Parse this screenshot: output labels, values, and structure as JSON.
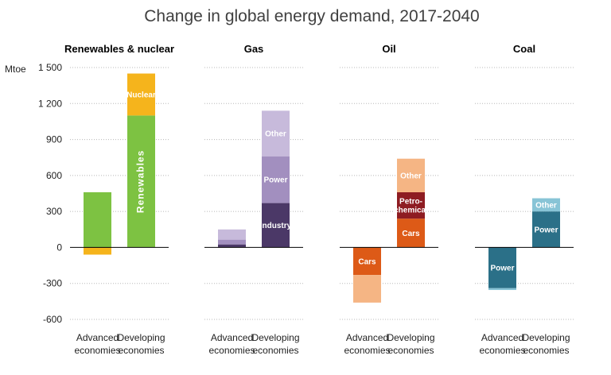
{
  "chart_data": {
    "type": "bar",
    "stacked": true,
    "title": "Change in global energy demand, 2017-2040",
    "ylabel": "Mtoe",
    "ylim": [
      -600,
      1500
    ],
    "yticks": [
      1500,
      1200,
      900,
      600,
      300,
      0,
      -300,
      -600
    ],
    "ytick_labels": [
      "1 500",
      "1 200",
      "900",
      "600",
      "300",
      "0",
      "-300",
      "-600"
    ],
    "grid": true,
    "categories": [
      "Advanced economies",
      "Developing economies"
    ],
    "category_lines": [
      [
        "Advanced",
        "economies"
      ],
      [
        "Developing",
        "economies"
      ]
    ],
    "panels": [
      {
        "title": "Renewables & nuclear",
        "bars": [
          {
            "category": "Advanced economies",
            "segments": [
              {
                "name": "Renewables",
                "value": 460,
                "color": "#7dc242",
                "label": ""
              },
              {
                "name": "Nuclear",
                "value": -60,
                "color": "#f5b41c",
                "label": ""
              }
            ]
          },
          {
            "category": "Developing economies",
            "segments": [
              {
                "name": "Renewables",
                "value": 1100,
                "color": "#7dc242",
                "label": "Renewables",
                "vertical": true
              },
              {
                "name": "Nuclear",
                "value": 350,
                "color": "#f5b41c",
                "label": "Nuclear"
              }
            ]
          }
        ]
      },
      {
        "title": "Gas",
        "bars": [
          {
            "category": "Advanced economies",
            "segments": [
              {
                "name": "Industry",
                "value": 25,
                "color": "#4b3867",
                "label": ""
              },
              {
                "name": "Power",
                "value": 40,
                "color": "#a28fbf",
                "label": ""
              },
              {
                "name": "Other",
                "value": 85,
                "color": "#c7badb",
                "label": ""
              }
            ]
          },
          {
            "category": "Developing economies",
            "segments": [
              {
                "name": "Industry",
                "value": 370,
                "color": "#4b3867",
                "label": "Industry"
              },
              {
                "name": "Power",
                "value": 390,
                "color": "#a28fbf",
                "label": "Power"
              },
              {
                "name": "Other",
                "value": 380,
                "color": "#c7badb",
                "label": "Other"
              }
            ]
          }
        ]
      },
      {
        "title": "Oil",
        "bars": [
          {
            "category": "Advanced economies",
            "segments": [
              {
                "name": "Cars",
                "value": -230,
                "color": "#dd5a17",
                "label": "Cars"
              },
              {
                "name": "Other",
                "value": -230,
                "color": "#f5b584",
                "label": ""
              }
            ]
          },
          {
            "category": "Developing economies",
            "segments": [
              {
                "name": "Cars",
                "value": 240,
                "color": "#dd5a17",
                "label": "Cars"
              },
              {
                "name": "Petrochemical",
                "value": 220,
                "color": "#8e1c22",
                "label": "Petro-\nchemical"
              },
              {
                "name": "Other",
                "value": 280,
                "color": "#f5b584",
                "label": "Other"
              }
            ]
          }
        ]
      },
      {
        "title": "Coal",
        "bars": [
          {
            "category": "Advanced economies",
            "segments": [
              {
                "name": "Power",
                "value": -340,
                "color": "#2b7088",
                "label": "Power"
              },
              {
                "name": "Other",
                "value": -15,
                "color": "#88c4d6",
                "label": ""
              }
            ]
          },
          {
            "category": "Developing economies",
            "segments": [
              {
                "name": "Power",
                "value": 300,
                "color": "#2b7088",
                "label": "Power"
              },
              {
                "name": "Other",
                "value": 110,
                "color": "#88c4d6",
                "label": "Other"
              }
            ]
          }
        ]
      }
    ]
  }
}
